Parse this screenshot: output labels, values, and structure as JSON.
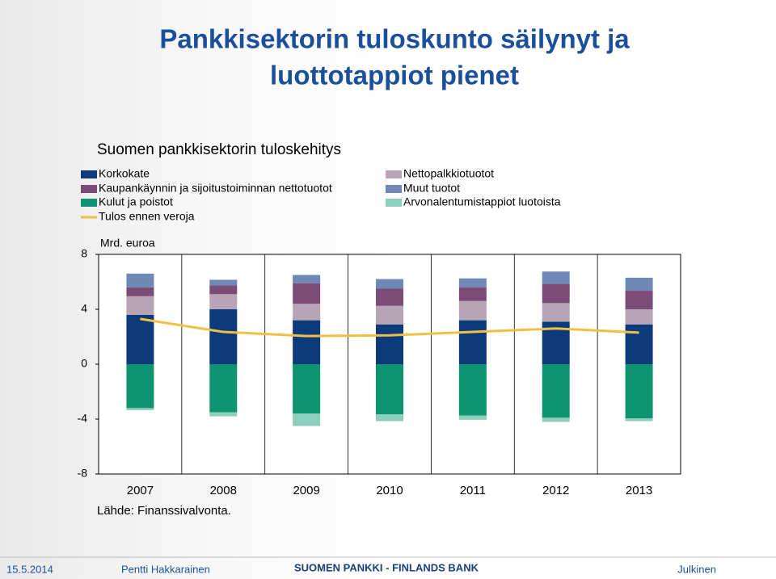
{
  "slide": {
    "title": [
      "Pankkisektorin tuloskunto säilynyt ja",
      "luottotappiot pienet"
    ],
    "footer": {
      "date": "15.5.2014",
      "author": "Pentti Hakkarainen",
      "bank": "SUOMEN PANKKI - FINLANDS BANK",
      "classification": "Julkinen"
    }
  },
  "chart_data": {
    "type": "bar",
    "stacked": true,
    "title": "Suomen pankkisektorin tuloskehitys",
    "ylabel": "Mrd. euroa",
    "source": "Lähde: Finanssivalvonta.",
    "categories": [
      "2007",
      "2008",
      "2009",
      "2010",
      "2011",
      "2012",
      "2013"
    ],
    "series": [
      {
        "name": "Korkokate",
        "color": "#0d3a7a",
        "values": [
          3.6,
          4.0,
          3.2,
          2.9,
          3.2,
          3.1,
          2.9
        ]
      },
      {
        "name": "Nettopalkkiotuotot",
        "color": "#b7a4b4",
        "values": [
          1.35,
          1.1,
          1.2,
          1.35,
          1.4,
          1.35,
          1.1
        ]
      },
      {
        "name": "Kaupankäynnin ja sijoitustoiminnan nettotuotot",
        "color": "#7b4c78",
        "values": [
          0.65,
          0.65,
          1.5,
          1.25,
          1.0,
          1.4,
          1.35
        ]
      },
      {
        "name": "Muut tuotot",
        "color": "#6f88b5",
        "values": [
          1.0,
          0.4,
          0.6,
          0.7,
          0.65,
          0.9,
          0.95
        ]
      },
      {
        "name": "Kulut ja poistot",
        "color": "#0e9470",
        "values": [
          -3.2,
          -3.5,
          -3.6,
          -3.65,
          -3.75,
          -3.9,
          -3.95
        ]
      },
      {
        "name": "Arvonalentumistappiot luotoista",
        "color": "#8ecfbc",
        "values": [
          -0.15,
          -0.3,
          -0.9,
          -0.5,
          -0.3,
          -0.3,
          -0.2
        ]
      },
      {
        "name": "Tulos ennen veroja",
        "color": "#f0c045",
        "type": "line",
        "values": [
          3.3,
          2.35,
          2.05,
          2.1,
          2.35,
          2.6,
          2.3
        ]
      }
    ],
    "ylim": [
      -8,
      8
    ],
    "yticks": [
      8,
      4,
      0,
      -4,
      -8
    ],
    "grid": "vertical"
  }
}
